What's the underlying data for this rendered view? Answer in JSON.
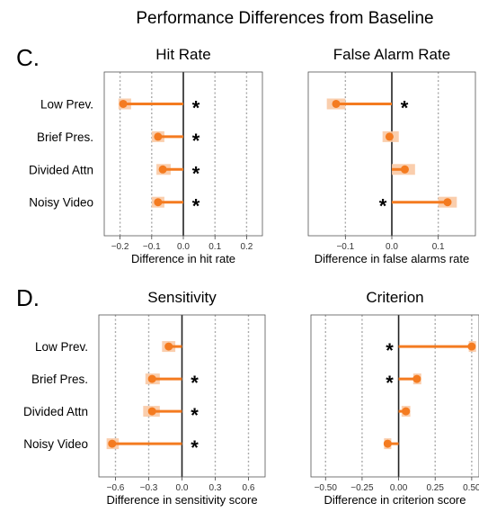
{
  "suptitle": "Performance Differences from Baseline",
  "row_labels": [
    "C.",
    "D."
  ],
  "colors": {
    "line": "#f47b20",
    "marker": "#f47b20",
    "ci": "#f9c9a4",
    "zero": "#222222",
    "grid": "#aaaaaa",
    "frame": "#555555"
  },
  "chart_data": [
    {
      "type": "dot-interval",
      "title": "Hit Rate",
      "xlabel": "Difference in hit rate",
      "categories": [
        "Low Prev.",
        "Brief Pres.",
        "Divided Attn",
        "Noisy Video"
      ],
      "values": [
        -0.19,
        -0.08,
        -0.065,
        -0.08
      ],
      "ci": [
        [
          -0.205,
          -0.165
        ],
        [
          -0.1,
          -0.06
        ],
        [
          -0.085,
          -0.04
        ],
        [
          -0.1,
          -0.06
        ]
      ],
      "significant": [
        "*",
        "*",
        "*",
        "*"
      ],
      "star_side": [
        "right",
        "right",
        "right",
        "right"
      ],
      "xlim": [
        -0.25,
        0.25
      ],
      "xticks": [
        -0.2,
        -0.1,
        0.0,
        0.1,
        0.2
      ],
      "xticklabels": [
        "−0.2",
        "−0.1",
        "0.0",
        "0.1",
        "0.2"
      ],
      "grid": true,
      "show_ylabels": true
    },
    {
      "type": "dot-interval",
      "title": "False Alarm Rate",
      "xlabel": "Difference in false alarms rate",
      "categories": [
        "Low Prev.",
        "Brief Pres.",
        "Divided Attn",
        "Noisy Video"
      ],
      "values": [
        -0.12,
        -0.005,
        0.028,
        0.12
      ],
      "ci": [
        [
          -0.14,
          -0.1
        ],
        [
          -0.02,
          0.015
        ],
        [
          0.0,
          0.05
        ],
        [
          0.1,
          0.14
        ]
      ],
      "significant": [
        "*",
        "",
        "",
        "*"
      ],
      "star_side": [
        "right",
        "",
        "",
        "left"
      ],
      "xlim": [
        -0.18,
        0.18
      ],
      "xticks": [
        -0.1,
        0.0,
        0.1
      ],
      "xticklabels": [
        "−0.1",
        "0.0",
        "0.1"
      ],
      "grid": true,
      "show_ylabels": false
    },
    {
      "type": "dot-interval",
      "title": "Sensitivity",
      "xlabel": "Difference in sensitivity score",
      "categories": [
        "Low Prev.",
        "Brief Pres.",
        "Divided Attn",
        "Noisy Video"
      ],
      "values": [
        -0.12,
        -0.27,
        -0.27,
        -0.63
      ],
      "ci": [
        [
          -0.18,
          -0.06
        ],
        [
          -0.33,
          -0.2
        ],
        [
          -0.35,
          -0.2
        ],
        [
          -0.68,
          -0.57
        ]
      ],
      "significant": [
        "",
        "*",
        "*",
        "*"
      ],
      "star_side": [
        "",
        "right",
        "right",
        "right"
      ],
      "xlim": [
        -0.75,
        0.75
      ],
      "xticks": [
        -0.6,
        -0.3,
        0.0,
        0.3,
        0.6
      ],
      "xticklabels": [
        "−0.6",
        "−0.3",
        "0.0",
        "0.3",
        "0.6"
      ],
      "grid": true,
      "show_ylabels": true
    },
    {
      "type": "dot-interval",
      "title": "Criterion",
      "xlabel": "Difference in criterion score",
      "categories": [
        "Low Prev.",
        "Brief Pres.",
        "Divided Attn",
        "Noisy Video"
      ],
      "values": [
        0.5,
        0.125,
        0.05,
        -0.075
      ],
      "ci": [
        [
          0.48,
          0.53
        ],
        [
          0.1,
          0.155
        ],
        [
          0.02,
          0.08
        ],
        [
          -0.1,
          -0.05
        ]
      ],
      "significant": [
        "*",
        "*",
        "",
        ""
      ],
      "star_side": [
        "left",
        "left",
        "",
        ""
      ],
      "xlim": [
        -0.6,
        0.55
      ],
      "xticks": [
        -0.5,
        -0.25,
        0.0,
        0.25,
        0.5
      ],
      "xticklabels": [
        "−0.50",
        "−0.25",
        "0.00",
        "0.25",
        "0.50"
      ],
      "grid": true,
      "show_ylabels": false
    }
  ]
}
